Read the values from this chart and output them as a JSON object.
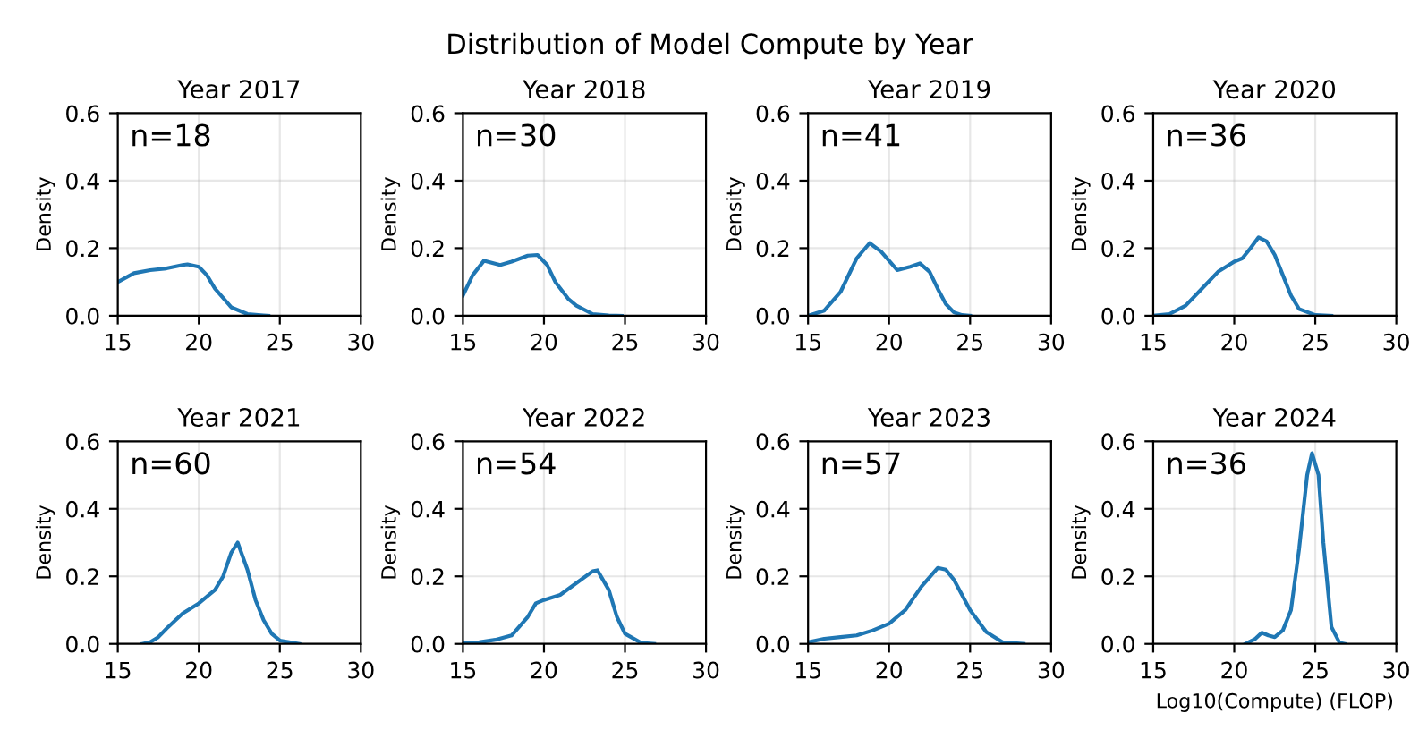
{
  "chart_data": [
    {
      "type": "line",
      "title": "Year 2017",
      "ylabel": "Density",
      "annotations": [
        "n=18",
        "Distribution of Model Compute by Year"
      ],
      "xlim": [
        15,
        30
      ],
      "xticks": [
        15,
        20,
        25,
        30
      ],
      "ylim": [
        0,
        0.6
      ],
      "yticks": [
        {
          "value": 0,
          "label": "0.0"
        },
        {
          "value": 0.2,
          "label": "0.2"
        },
        {
          "value": 0.4,
          "label": "0.4"
        },
        {
          "value": 0.6,
          "label": "0.6"
        }
      ],
      "grid": true,
      "series": [
        {
          "color": "#1f77b4",
          "x": [
            15,
            16,
            17,
            18,
            19,
            19.3,
            20,
            20.5,
            21,
            22,
            23,
            24,
            24.3
          ],
          "values": [
            0.1,
            0.126,
            0.135,
            0.14,
            0.15,
            0.152,
            0.145,
            0.12,
            0.08,
            0.025,
            0.005,
            0.001,
            0
          ]
        }
      ]
    },
    {
      "type": "line",
      "title": "Year 2018",
      "ylabel": "Density",
      "annotations": [
        "n=30"
      ],
      "xlim": [
        15,
        30
      ],
      "xticks": [
        15,
        20,
        25,
        30
      ],
      "ylim": [
        0,
        0.6
      ],
      "yticks": [
        {
          "value": 0,
          "label": "0.0"
        },
        {
          "value": 0.2,
          "label": "0.2"
        },
        {
          "value": 0.4,
          "label": "0.4"
        },
        {
          "value": 0.6,
          "label": "0.6"
        }
      ],
      "grid": true,
      "series": [
        {
          "color": "#1f77b4",
          "x": [
            15,
            15.6,
            16.3,
            17.3,
            18,
            19,
            19.6,
            20.2,
            20.7,
            21.5,
            22,
            23,
            24,
            24.8
          ],
          "values": [
            0.06,
            0.12,
            0.163,
            0.15,
            0.16,
            0.178,
            0.18,
            0.15,
            0.1,
            0.05,
            0.03,
            0.005,
            0.001,
            0
          ]
        }
      ]
    },
    {
      "type": "line",
      "title": "Year 2019",
      "ylabel": "Density",
      "annotations": [
        "n=41"
      ],
      "xlim": [
        15,
        30
      ],
      "xticks": [
        15,
        20,
        25,
        30
      ],
      "ylim": [
        0,
        0.6
      ],
      "yticks": [
        {
          "value": 0,
          "label": "0.0"
        },
        {
          "value": 0.2,
          "label": "0.2"
        },
        {
          "value": 0.4,
          "label": "0.4"
        },
        {
          "value": 0.6,
          "label": "0.6"
        }
      ],
      "grid": true,
      "series": [
        {
          "color": "#1f77b4",
          "x": [
            15,
            16,
            17,
            18,
            18.8,
            19.5,
            20.5,
            21.3,
            21.9,
            22.5,
            23,
            23.5,
            24,
            24.5,
            25
          ],
          "values": [
            0,
            0.015,
            0.07,
            0.17,
            0.215,
            0.19,
            0.135,
            0.145,
            0.155,
            0.13,
            0.08,
            0.035,
            0.01,
            0.002,
            0
          ]
        }
      ]
    },
    {
      "type": "line",
      "title": "Year 2020",
      "ylabel": "Density",
      "annotations": [
        "n=36"
      ],
      "xlim": [
        15,
        30
      ],
      "xticks": [
        15,
        20,
        25,
        30
      ],
      "ylim": [
        0,
        0.6
      ],
      "yticks": [
        {
          "value": 0,
          "label": "0.0"
        },
        {
          "value": 0.2,
          "label": "0.2"
        },
        {
          "value": 0.4,
          "label": "0.4"
        },
        {
          "value": 0.6,
          "label": "0.6"
        }
      ],
      "grid": true,
      "series": [
        {
          "color": "#1f77b4",
          "x": [
            15,
            16,
            17,
            18,
            19,
            20,
            20.5,
            21,
            21.5,
            22,
            22.5,
            23,
            23.5,
            24,
            25,
            26
          ],
          "values": [
            0,
            0.005,
            0.03,
            0.08,
            0.13,
            0.16,
            0.17,
            0.2,
            0.232,
            0.22,
            0.18,
            0.12,
            0.06,
            0.02,
            0.002,
            0
          ]
        }
      ]
    },
    {
      "type": "line",
      "title": "Year 2021",
      "ylabel": "Density",
      "annotations": [
        "n=60"
      ],
      "xlim": [
        15,
        30
      ],
      "xticks": [
        15,
        20,
        25,
        30
      ],
      "ylim": [
        0,
        0.6
      ],
      "yticks": [
        {
          "value": 0,
          "label": "0.0"
        },
        {
          "value": 0.2,
          "label": "0.2"
        },
        {
          "value": 0.4,
          "label": "0.4"
        },
        {
          "value": 0.6,
          "label": "0.6"
        }
      ],
      "grid": true,
      "series": [
        {
          "color": "#1f77b4",
          "x": [
            16.5,
            17,
            17.5,
            18,
            19,
            20,
            21,
            21.5,
            22,
            22.4,
            23,
            23.5,
            24,
            24.5,
            25,
            26.2
          ],
          "values": [
            0,
            0.005,
            0.02,
            0.045,
            0.09,
            0.12,
            0.16,
            0.2,
            0.27,
            0.3,
            0.22,
            0.13,
            0.07,
            0.03,
            0.01,
            0
          ]
        }
      ]
    },
    {
      "type": "line",
      "title": "Year 2022",
      "ylabel": "Density",
      "annotations": [
        "n=54"
      ],
      "xlim": [
        15,
        30
      ],
      "xticks": [
        15,
        20,
        25,
        30
      ],
      "ylim": [
        0,
        0.6
      ],
      "yticks": [
        {
          "value": 0,
          "label": "0.0"
        },
        {
          "value": 0.2,
          "label": "0.2"
        },
        {
          "value": 0.4,
          "label": "0.4"
        },
        {
          "value": 0.6,
          "label": "0.6"
        }
      ],
      "grid": true,
      "series": [
        {
          "color": "#1f77b4",
          "x": [
            15,
            16,
            17,
            18,
            19,
            19.5,
            20,
            21,
            22,
            23,
            23.3,
            24,
            24.5,
            25,
            26,
            26.8
          ],
          "values": [
            0.002,
            0.005,
            0.012,
            0.025,
            0.08,
            0.12,
            0.13,
            0.145,
            0.18,
            0.215,
            0.218,
            0.16,
            0.08,
            0.03,
            0.003,
            0
          ]
        }
      ]
    },
    {
      "type": "line",
      "title": "Year 2023",
      "ylabel": "Density",
      "annotations": [
        "n=57"
      ],
      "xlim": [
        15,
        30
      ],
      "xticks": [
        15,
        20,
        25,
        30
      ],
      "ylim": [
        0,
        0.6
      ],
      "yticks": [
        {
          "value": 0,
          "label": "0.0"
        },
        {
          "value": 0.2,
          "label": "0.2"
        },
        {
          "value": 0.4,
          "label": "0.4"
        },
        {
          "value": 0.6,
          "label": "0.6"
        }
      ],
      "grid": true,
      "series": [
        {
          "color": "#1f77b4",
          "x": [
            15,
            16,
            17,
            18,
            19,
            20,
            21,
            22,
            23,
            23.5,
            24,
            25,
            26,
            27,
            28.3
          ],
          "values": [
            0.005,
            0.015,
            0.02,
            0.025,
            0.04,
            0.06,
            0.1,
            0.17,
            0.225,
            0.22,
            0.19,
            0.1,
            0.035,
            0.005,
            0
          ]
        }
      ]
    },
    {
      "type": "line",
      "title": "Year 2024",
      "xlabel": "Log10(Compute) (FLOP)",
      "ylabel": "Density",
      "annotations": [
        "n=36"
      ],
      "xlim": [
        15,
        30
      ],
      "xticks": [
        15,
        20,
        25,
        30
      ],
      "ylim": [
        0,
        0.6
      ],
      "yticks": [
        {
          "value": 0,
          "label": "0.0"
        },
        {
          "value": 0.2,
          "label": "0.2"
        },
        {
          "value": 0.4,
          "label": "0.4"
        },
        {
          "value": 0.6,
          "label": "0.6"
        }
      ],
      "grid": true,
      "series": [
        {
          "color": "#1f77b4",
          "x": [
            20.7,
            21.3,
            21.7,
            22.1,
            22.5,
            23,
            23.5,
            24,
            24.5,
            24.8,
            25.2,
            25.5,
            26,
            26.5,
            26.8
          ],
          "values": [
            0,
            0.015,
            0.033,
            0.025,
            0.02,
            0.04,
            0.1,
            0.28,
            0.5,
            0.565,
            0.5,
            0.3,
            0.05,
            0.003,
            0
          ]
        }
      ]
    }
  ]
}
